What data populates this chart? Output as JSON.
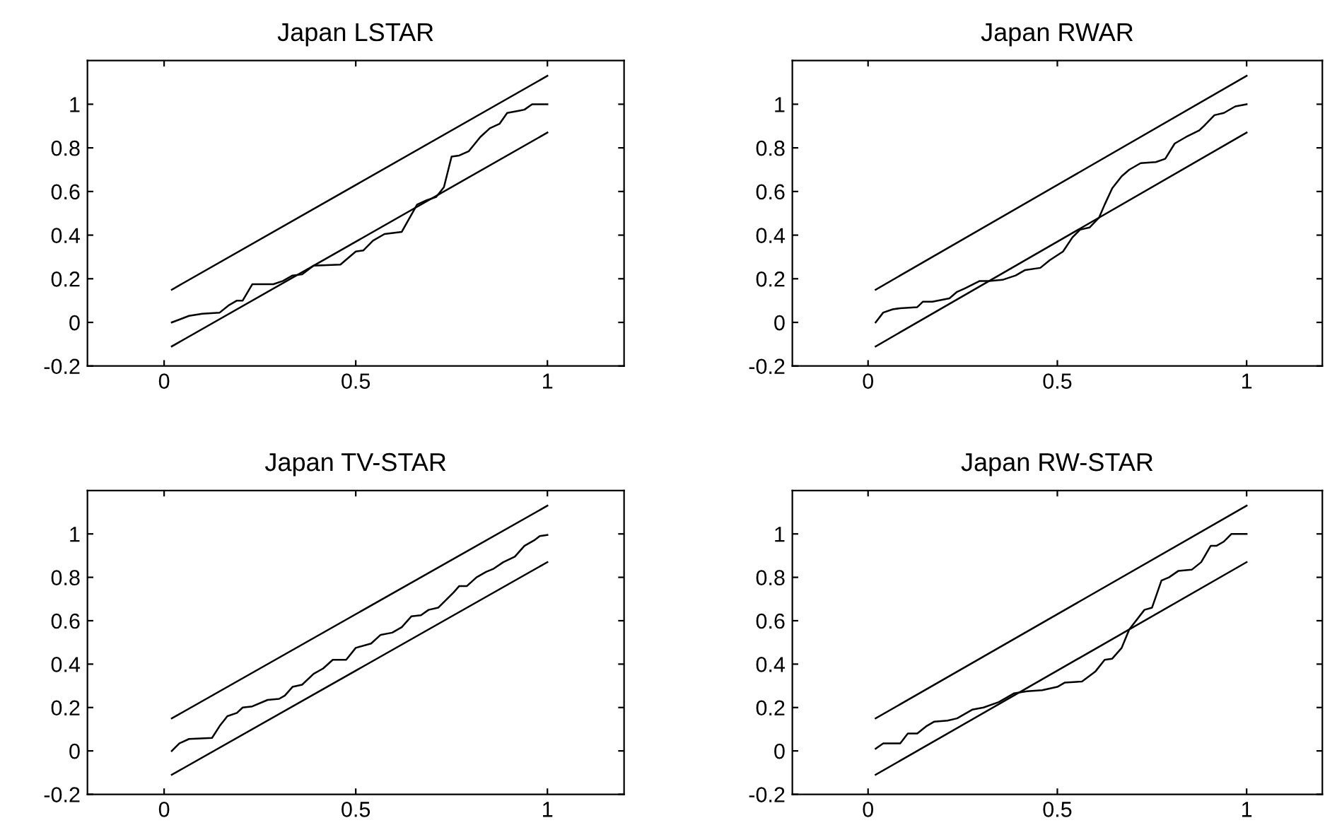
{
  "chart_data": [
    {
      "type": "line",
      "title": "Japan LSTAR",
      "xlim": [
        -0.2,
        1.2
      ],
      "ylim": [
        -0.2,
        1.2
      ],
      "xticks": [
        0,
        0.5,
        1
      ],
      "yticks": [
        -0.2,
        0,
        0.2,
        0.4,
        0.6,
        0.8,
        1
      ],
      "grid": false,
      "series": [
        {
          "color": "#000000",
          "x": [
            0.02,
            0.065,
            0.1,
            0.145,
            0.17,
            0.19,
            0.205,
            0.23,
            0.285,
            0.31,
            0.335,
            0.36,
            0.39,
            0.46,
            0.48,
            0.5,
            0.52,
            0.545,
            0.575,
            0.62,
            0.66,
            0.685,
            0.71,
            0.73,
            0.75,
            0.77,
            0.795,
            0.825,
            0.85,
            0.875,
            0.895,
            0.925,
            0.94,
            0.96,
            1.0
          ],
          "values": [
            0,
            0.03,
            0.04,
            0.045,
            0.08,
            0.1,
            0.1,
            0.175,
            0.175,
            0.19,
            0.215,
            0.22,
            0.26,
            0.265,
            0.295,
            0.325,
            0.33,
            0.375,
            0.405,
            0.415,
            0.54,
            0.56,
            0.575,
            0.62,
            0.76,
            0.765,
            0.785,
            0.85,
            0.89,
            0.91,
            0.96,
            0.97,
            0.975,
            1.0,
            1.0
          ]
        },
        {
          "color": "#000000",
          "x": [
            0.02,
            1.0
          ],
          "values": [
            0.15,
            1.13
          ]
        },
        {
          "color": "#000000",
          "x": [
            0.02,
            1.0
          ],
          "values": [
            -0.11,
            0.87
          ]
        }
      ]
    },
    {
      "type": "line",
      "title": "Japan RWAR",
      "xlim": [
        -0.2,
        1.2
      ],
      "ylim": [
        -0.2,
        1.2
      ],
      "xticks": [
        0,
        0.5,
        1
      ],
      "yticks": [
        -0.2,
        0,
        0.2,
        0.4,
        0.6,
        0.8,
        1
      ],
      "grid": false,
      "series": [
        {
          "color": "#000000",
          "x": [
            0.02,
            0.04,
            0.065,
            0.085,
            0.13,
            0.145,
            0.17,
            0.215,
            0.235,
            0.255,
            0.295,
            0.32,
            0.355,
            0.39,
            0.415,
            0.455,
            0.48,
            0.515,
            0.54,
            0.56,
            0.585,
            0.61,
            0.625,
            0.645,
            0.67,
            0.69,
            0.72,
            0.76,
            0.785,
            0.81,
            0.84,
            0.875,
            0.89,
            0.915,
            0.94,
            0.97,
            1.0
          ],
          "values": [
            0,
            0.045,
            0.06,
            0.065,
            0.07,
            0.095,
            0.095,
            0.11,
            0.14,
            0.155,
            0.19,
            0.19,
            0.195,
            0.215,
            0.24,
            0.25,
            0.285,
            0.325,
            0.39,
            0.425,
            0.435,
            0.48,
            0.54,
            0.615,
            0.67,
            0.7,
            0.73,
            0.735,
            0.75,
            0.82,
            0.85,
            0.88,
            0.905,
            0.95,
            0.96,
            0.99,
            1.0
          ]
        },
        {
          "color": "#000000",
          "x": [
            0.02,
            1.0
          ],
          "values": [
            0.15,
            1.13
          ]
        },
        {
          "color": "#000000",
          "x": [
            0.02,
            1.0
          ],
          "values": [
            -0.11,
            0.87
          ]
        }
      ]
    },
    {
      "type": "line",
      "title": "Japan TV-STAR",
      "xlim": [
        -0.2,
        1.2
      ],
      "ylim": [
        -0.2,
        1.2
      ],
      "xticks": [
        0,
        0.5,
        1
      ],
      "yticks": [
        -0.2,
        0,
        0.2,
        0.4,
        0.6,
        0.8,
        1
      ],
      "grid": false,
      "series": [
        {
          "color": "#000000",
          "x": [
            0.02,
            0.04,
            0.065,
            0.125,
            0.145,
            0.165,
            0.19,
            0.205,
            0.23,
            0.27,
            0.3,
            0.315,
            0.335,
            0.36,
            0.39,
            0.415,
            0.44,
            0.475,
            0.5,
            0.54,
            0.565,
            0.595,
            0.62,
            0.645,
            0.67,
            0.69,
            0.715,
            0.735,
            0.755,
            0.77,
            0.79,
            0.815,
            0.84,
            0.86,
            0.885,
            0.915,
            0.94,
            0.965,
            0.98,
            1.0
          ],
          "values": [
            0,
            0.035,
            0.055,
            0.06,
            0.115,
            0.16,
            0.175,
            0.2,
            0.205,
            0.235,
            0.24,
            0.255,
            0.295,
            0.305,
            0.355,
            0.38,
            0.42,
            0.42,
            0.475,
            0.495,
            0.535,
            0.545,
            0.57,
            0.62,
            0.625,
            0.65,
            0.66,
            0.695,
            0.73,
            0.76,
            0.76,
            0.8,
            0.825,
            0.84,
            0.87,
            0.895,
            0.945,
            0.97,
            0.99,
            0.995
          ]
        },
        {
          "color": "#000000",
          "x": [
            0.02,
            1.0
          ],
          "values": [
            0.15,
            1.13
          ]
        },
        {
          "color": "#000000",
          "x": [
            0.02,
            1.0
          ],
          "values": [
            -0.11,
            0.87
          ]
        }
      ]
    },
    {
      "type": "line",
      "title": "Japan RW-STAR",
      "xlim": [
        -0.2,
        1.2
      ],
      "ylim": [
        -0.2,
        1.2
      ],
      "xticks": [
        0,
        0.5,
        1
      ],
      "yticks": [
        -0.2,
        0,
        0.2,
        0.4,
        0.6,
        0.8,
        1
      ],
      "grid": false,
      "series": [
        {
          "color": "#000000",
          "x": [
            0.02,
            0.04,
            0.085,
            0.105,
            0.13,
            0.155,
            0.175,
            0.21,
            0.235,
            0.275,
            0.305,
            0.345,
            0.385,
            0.42,
            0.46,
            0.5,
            0.52,
            0.565,
            0.6,
            0.625,
            0.645,
            0.67,
            0.69,
            0.73,
            0.75,
            0.775,
            0.795,
            0.82,
            0.855,
            0.88,
            0.905,
            0.92,
            0.94,
            0.96,
            1.0
          ],
          "values": [
            0.01,
            0.035,
            0.035,
            0.08,
            0.08,
            0.115,
            0.135,
            0.14,
            0.15,
            0.19,
            0.2,
            0.225,
            0.265,
            0.275,
            0.28,
            0.295,
            0.315,
            0.32,
            0.365,
            0.42,
            0.425,
            0.475,
            0.56,
            0.65,
            0.66,
            0.785,
            0.8,
            0.83,
            0.835,
            0.87,
            0.945,
            0.945,
            0.965,
            1.0,
            1.0
          ]
        },
        {
          "color": "#000000",
          "x": [
            0.02,
            1.0
          ],
          "values": [
            0.15,
            1.13
          ]
        },
        {
          "color": "#000000",
          "x": [
            0.02,
            1.0
          ],
          "values": [
            -0.11,
            0.87
          ]
        }
      ]
    }
  ]
}
